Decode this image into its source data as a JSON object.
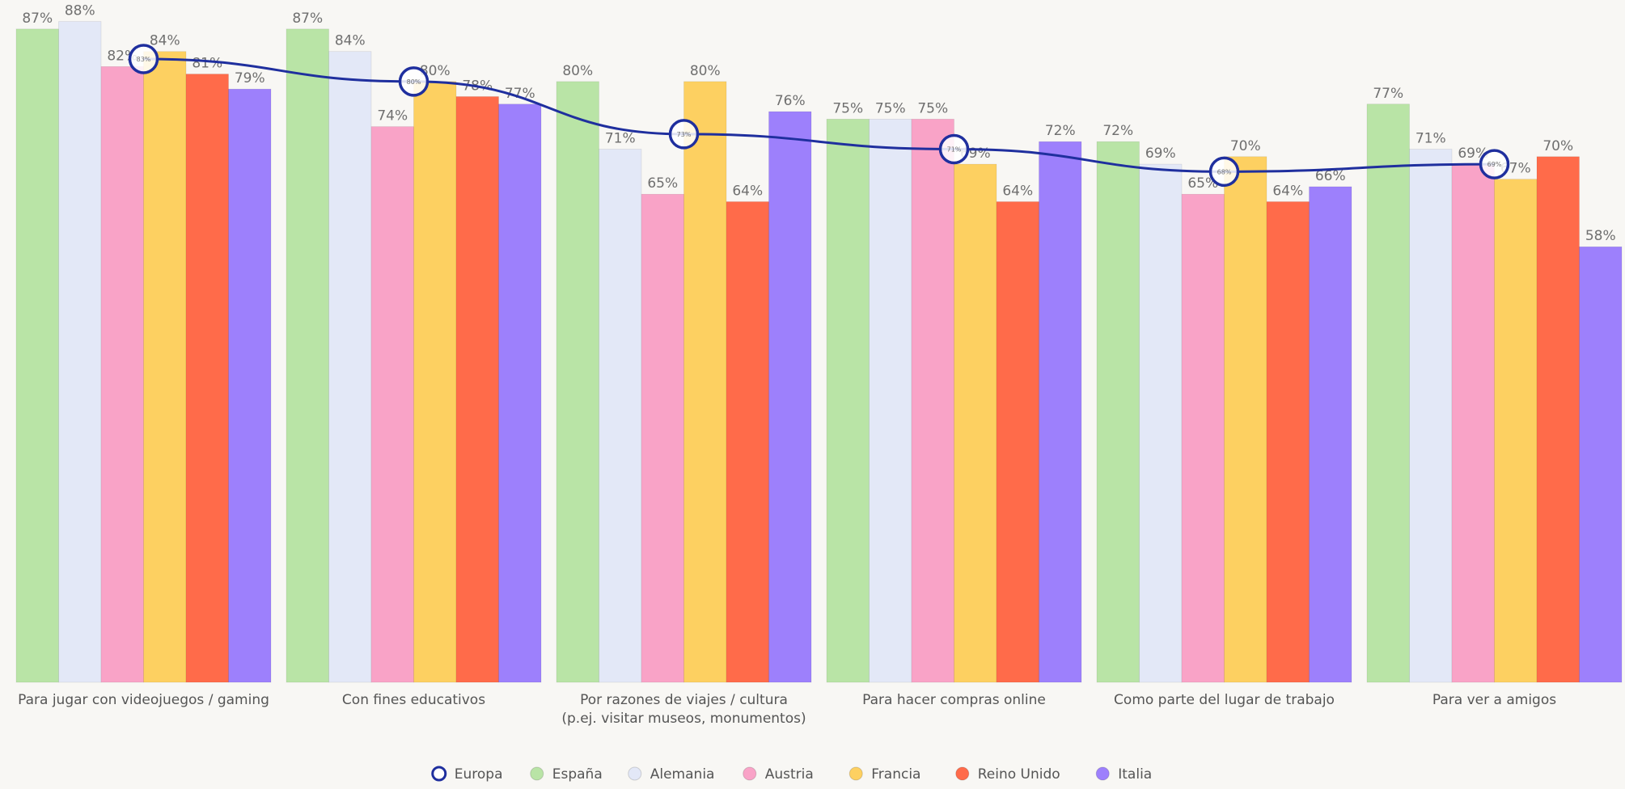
{
  "chart_data": {
    "type": "bar",
    "categories": [
      "Para jugar con videojuegos / gaming",
      "Con fines educativos",
      "Por razones de viajes / cultura\n(p.ej. visitar museos, monumentos)",
      "Para hacer compras online",
      "Como parte del lugar de trabajo",
      "Para ver a amigos"
    ],
    "ylim": [
      0,
      90
    ],
    "series": [
      {
        "name": "España",
        "color": "#b9e4a6",
        "values": [
          87,
          87,
          80,
          75,
          72,
          77
        ],
        "value_labels": [
          "87%",
          "87%",
          "80%",
          "75%",
          "72%",
          "77%"
        ]
      },
      {
        "name": "Alemania",
        "color": "#e3e8f7",
        "values": [
          88,
          84,
          71,
          75,
          69,
          71
        ],
        "value_labels": [
          "88%",
          "84%",
          "71%",
          "75%",
          "69%",
          "71%"
        ]
      },
      {
        "name": "Austria",
        "color": "#f9a3c7",
        "values": [
          82,
          74,
          65,
          75,
          65,
          69
        ],
        "value_labels": [
          "82%",
          "74%",
          "65%",
          "75%",
          "65%",
          "69%"
        ]
      },
      {
        "name": "Francia",
        "color": "#fdd061",
        "values": [
          84,
          80,
          80,
          69,
          70,
          67
        ],
        "value_labels": [
          "84%",
          "80%",
          "80%",
          "69%",
          "70%",
          "67%"
        ]
      },
      {
        "name": "Reino Unido",
        "color": "#ff6b4a",
        "values": [
          81,
          78,
          64,
          64,
          64,
          70
        ],
        "value_labels": [
          "81%",
          "78%",
          "64%",
          "64%",
          "64%",
          "70%"
        ]
      },
      {
        "name": "Italia",
        "color": "#9d80fc",
        "values": [
          79,
          77,
          76,
          72,
          66,
          58
        ],
        "value_labels": [
          "79%",
          "77%",
          "76%",
          "72%",
          "66%",
          "58%"
        ]
      },
      {
        "name": "Europa",
        "type": "line",
        "color": "#1f2f9e",
        "values": [
          83,
          80,
          73,
          71,
          68,
          69
        ],
        "value_labels": [
          "83%",
          "80%",
          "73%",
          "71%",
          "68%",
          "69%"
        ]
      }
    ]
  }
}
